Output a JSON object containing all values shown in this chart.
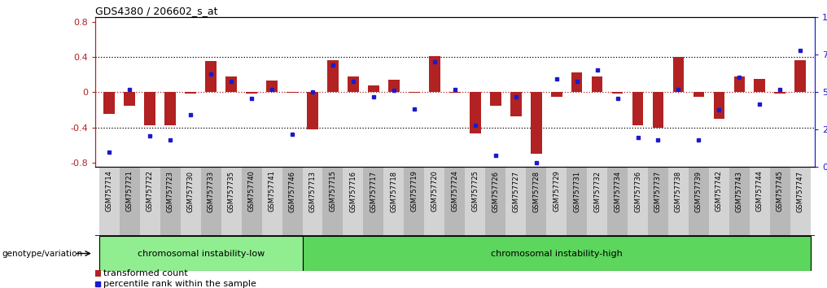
{
  "title": "GDS4380 / 206602_s_at",
  "categories": [
    "GSM757714",
    "GSM757721",
    "GSM757722",
    "GSM757723",
    "GSM757730",
    "GSM757733",
    "GSM757735",
    "GSM757740",
    "GSM757741",
    "GSM757746",
    "GSM757713",
    "GSM757715",
    "GSM757716",
    "GSM757717",
    "GSM757718",
    "GSM757719",
    "GSM757720",
    "GSM757724",
    "GSM757725",
    "GSM757726",
    "GSM757727",
    "GSM757728",
    "GSM757729",
    "GSM757731",
    "GSM757732",
    "GSM757734",
    "GSM757736",
    "GSM757737",
    "GSM757738",
    "GSM757739",
    "GSM757742",
    "GSM757743",
    "GSM757744",
    "GSM757745",
    "GSM757747"
  ],
  "bar_values": [
    -0.25,
    -0.15,
    -0.38,
    -0.38,
    -0.02,
    0.35,
    0.18,
    -0.02,
    0.13,
    -0.01,
    -0.42,
    0.36,
    0.18,
    0.08,
    0.14,
    -0.01,
    0.41,
    -0.01,
    -0.47,
    -0.15,
    -0.27,
    -0.7,
    -0.05,
    0.22,
    0.18,
    -0.02,
    -0.38,
    -0.4,
    0.4,
    -0.05,
    -0.3,
    0.18,
    0.15,
    -0.02,
    0.36
  ],
  "dot_values": [
    10,
    52,
    21,
    18,
    35,
    62,
    57,
    46,
    52,
    22,
    50,
    68,
    57,
    47,
    51,
    39,
    70,
    52,
    28,
    8,
    47,
    3,
    59,
    57,
    65,
    46,
    20,
    18,
    52,
    18,
    38,
    60,
    42,
    52,
    78
  ],
  "group1_label": "chromosomal instability-low",
  "group2_label": "chromosomal instability-high",
  "group1_count": 10,
  "group2_count": 25,
  "bar_color": "#b22222",
  "dot_color": "#1a1acd",
  "background_color": "#ffffff",
  "plot_bg_color": "#ffffff",
  "ylim": [
    -0.85,
    0.85
  ],
  "y2lim": [
    0,
    100
  ],
  "dotted_lines_black": [
    -0.4,
    0.4
  ],
  "dotted_line_red": 0.0,
  "genotype_label": "genotype/variation",
  "legend1": "transformed count",
  "legend2": "percentile rank within the sample",
  "group1_color": "#90ee90",
  "group2_color": "#5cd65c",
  "tick_bg_light": "#d3d3d3",
  "tick_bg_dark": "#b8b8b8"
}
